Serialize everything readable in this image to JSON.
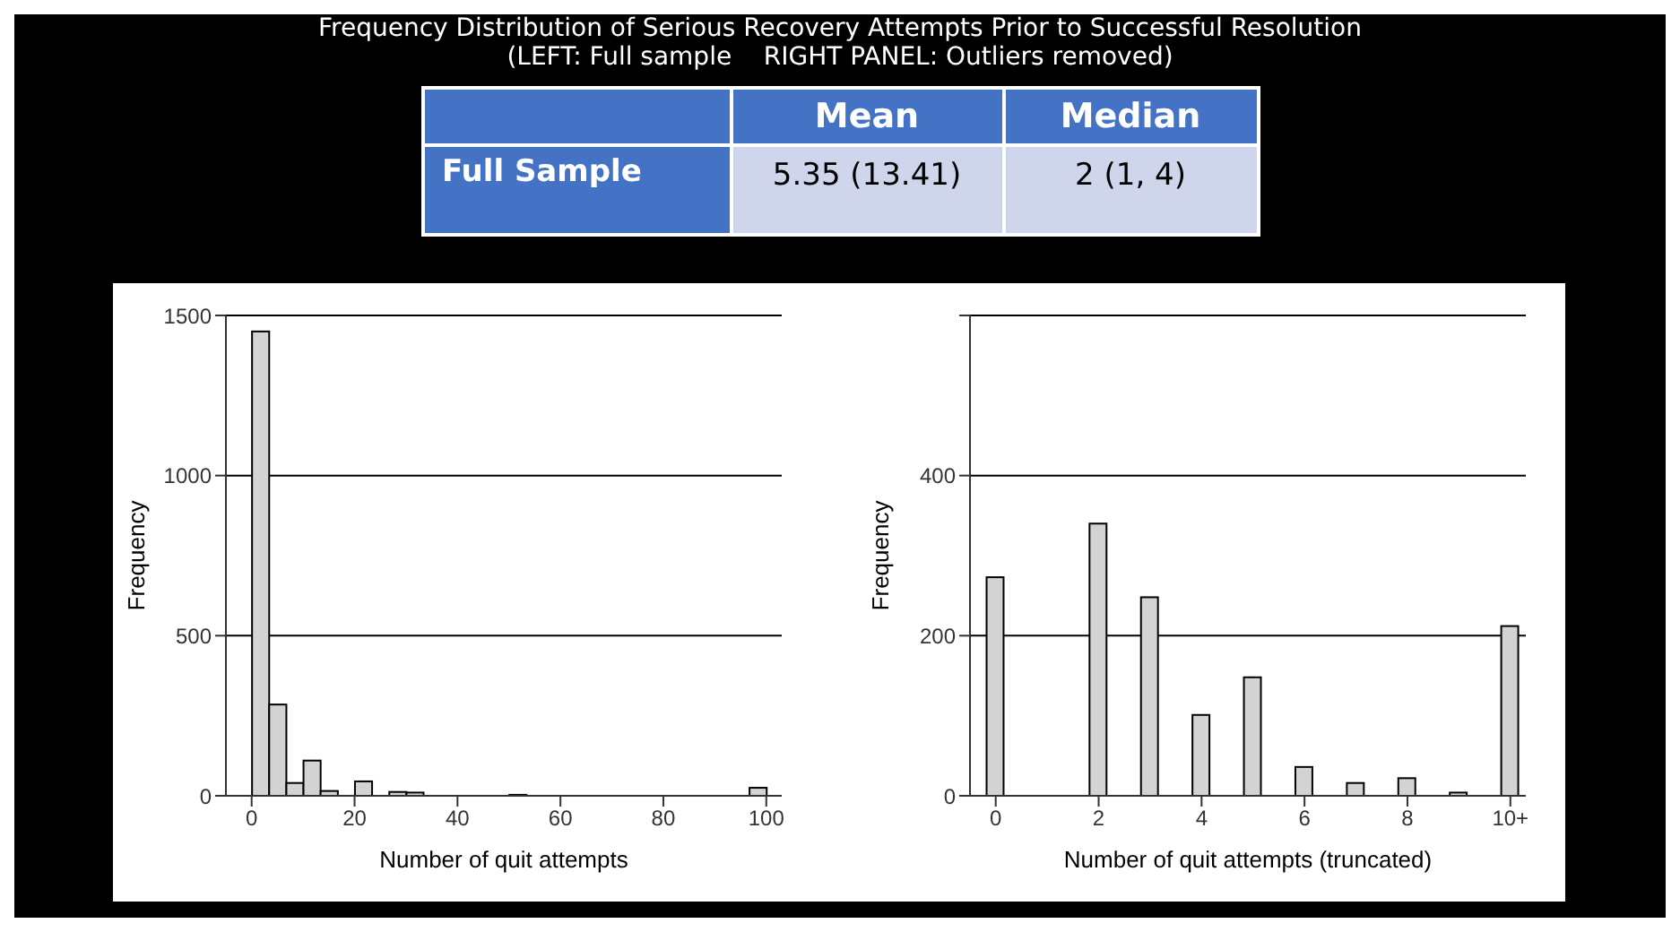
{
  "chart_data": [
    {
      "type": "other",
      "title": "Frequency Distribution of Serious Recovery Attempts Prior to Successful Resolution",
      "subtitle": "(LEFT: Full sample    RIGHT PANEL: Outliers removed)",
      "annotations": [
        "Mean",
        "Median",
        "Full Sample",
        "5.35 (13.41)",
        "2 (1, 4)"
      ]
    },
    {
      "type": "histogram",
      "xlabel": "Number of quit attempts",
      "ylabel": "Frequency",
      "bins": [
        0,
        3.33,
        6.67,
        10,
        13.33,
        16.67,
        20,
        23.33,
        26.67,
        30,
        33.33,
        36.67,
        40,
        43.33,
        46.67,
        50,
        53.33,
        56.67,
        60,
        63.33,
        66.67,
        70,
        73.33,
        76.67,
        80,
        83.33,
        86.67,
        90,
        93.33,
        96.67,
        100
      ],
      "values": [
        1450,
        285,
        40,
        110,
        15,
        null,
        45,
        null,
        12,
        10,
        0,
        0,
        0,
        0,
        0,
        3,
        0,
        0,
        0,
        0,
        null,
        0,
        0,
        0,
        0,
        0,
        0,
        0,
        0,
        25
      ],
      "color": "#d3d3d3",
      "xlim": [
        -5,
        103
      ],
      "xticks": [
        0,
        20,
        40,
        60,
        80,
        100
      ],
      "ylim": [
        0,
        1500
      ],
      "yticks": [
        0,
        500,
        1000,
        1500
      ],
      "grid": "y",
      "legend": false
    },
    {
      "type": "bar",
      "xlabel": "Number of quit attempts (truncated)",
      "ylabel": "Frequency",
      "x": [
        0,
        1,
        2,
        3,
        4,
        5,
        6,
        7,
        8,
        9,
        10
      ],
      "values": [
        273,
        null,
        340,
        248,
        101,
        148,
        36,
        16,
        22,
        4,
        212
      ],
      "color": "#d3d3d3",
      "xlim": [
        -0.5,
        10.3
      ],
      "xticks": [
        0,
        2,
        4,
        6,
        8,
        {
          "value": 10,
          "label": "10+"
        }
      ],
      "ylim": [
        0,
        600
      ],
      "yticks": [
        0,
        200,
        400,
        {
          "value": 600,
          "label": null
        }
      ],
      "grid": "y",
      "legend": false
    }
  ]
}
